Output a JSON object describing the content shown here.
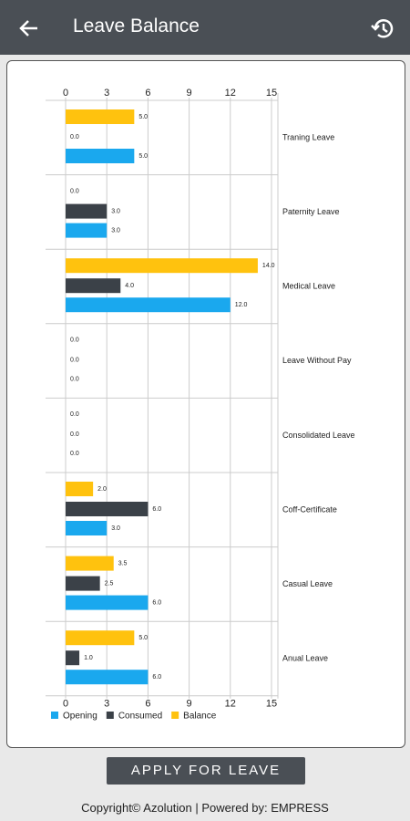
{
  "header": {
    "title": "Leave Balance"
  },
  "chart_data": {
    "type": "hbar",
    "categories": [
      "Traning Leave",
      "Paternity Leave",
      "Medical Leave",
      "Leave Without Pay",
      "Consolidated Leave",
      "Coff-Certificate",
      "Casual Leave",
      "Anual Leave"
    ],
    "series": [
      {
        "name": "Opening",
        "color": "#1aa8ee",
        "values": [
          5,
          3,
          12,
          0,
          0,
          3,
          6,
          6
        ],
        "value_labels": [
          "5.0",
          "3.0",
          "12.0",
          "0.0",
          "0.0",
          "3.0",
          "6.0",
          "6.0"
        ]
      },
      {
        "name": "Consumed",
        "color": "#3b4148",
        "values": [
          0,
          3,
          4,
          0,
          0,
          6,
          2.5,
          1
        ],
        "value_labels": [
          "0.0",
          "3.0",
          "4.0",
          "0.0",
          "0.0",
          "6.0",
          "2.5",
          "1.0"
        ]
      },
      {
        "name": "Balance",
        "color": "#ffc20e",
        "values": [
          5,
          0,
          14,
          0,
          0,
          2,
          3.5,
          5
        ],
        "value_labels": [
          "5.0",
          "0.0",
          "14.0",
          "0.0",
          "0.0",
          "2.0",
          "3.5",
          "5.0"
        ]
      }
    ],
    "xlim": [
      0,
      15
    ],
    "xticks": [
      0,
      3,
      6,
      9,
      12,
      15
    ],
    "grid": true
  },
  "button": {
    "label": "APPLY FOR LEAVE"
  },
  "footer": {
    "text": "Copyright© Azolution | Powered by: EMPRESS"
  }
}
